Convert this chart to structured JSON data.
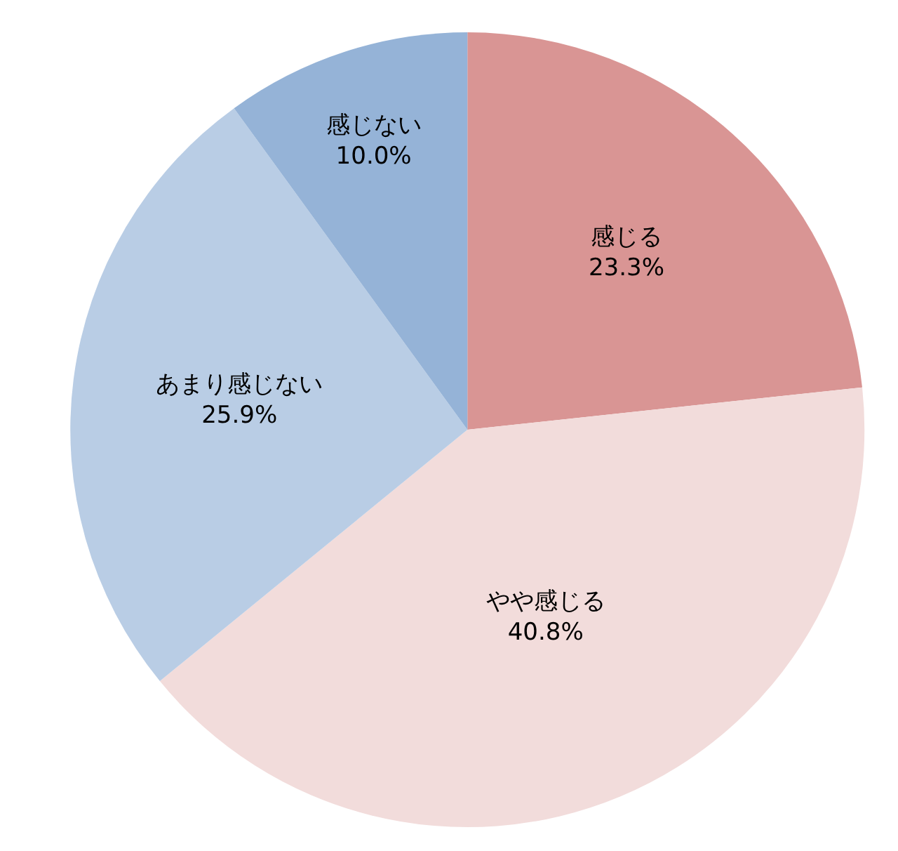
{
  "chart_data": {
    "type": "pie",
    "categories": [
      "感じる",
      "やや感じる",
      "あまり感じない",
      "感じない"
    ],
    "values": [
      23.3,
      40.8,
      25.9,
      10.0
    ],
    "value_labels": [
      "23.3%",
      "40.8%",
      "25.9%",
      "10.0%"
    ],
    "colors": [
      "#d99594",
      "#f2dcdb",
      "#b9cde5",
      "#95b3d7"
    ],
    "legend": false
  }
}
